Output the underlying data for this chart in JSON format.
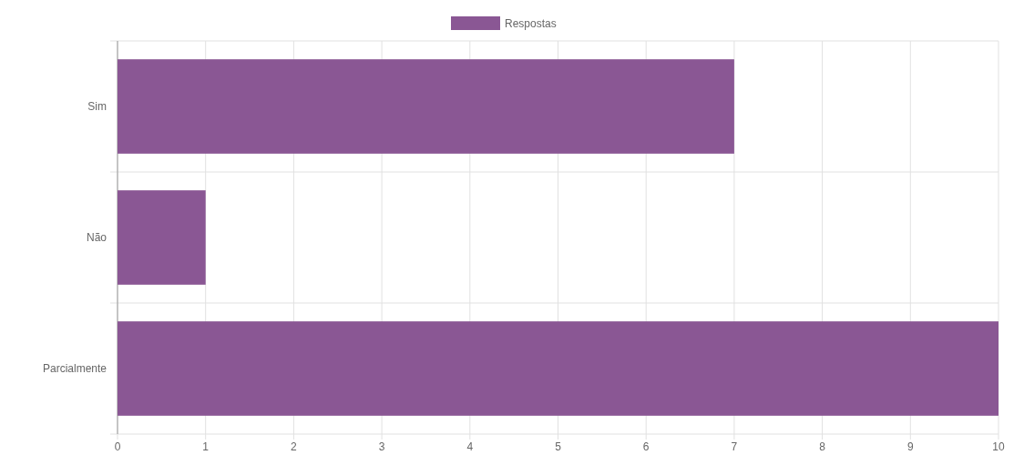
{
  "chart_data": {
    "type": "bar",
    "orientation": "horizontal",
    "categories": [
      "Sim",
      "Não",
      "Parcialmente"
    ],
    "series": [
      {
        "name": "Respostas",
        "color": "#8a5794",
        "values": [
          7,
          1,
          10
        ]
      }
    ],
    "xlim": [
      0,
      10
    ],
    "xticks": [
      0,
      1,
      2,
      3,
      4,
      5,
      6,
      7,
      8,
      9,
      10
    ],
    "grid": true,
    "legend": "top"
  }
}
